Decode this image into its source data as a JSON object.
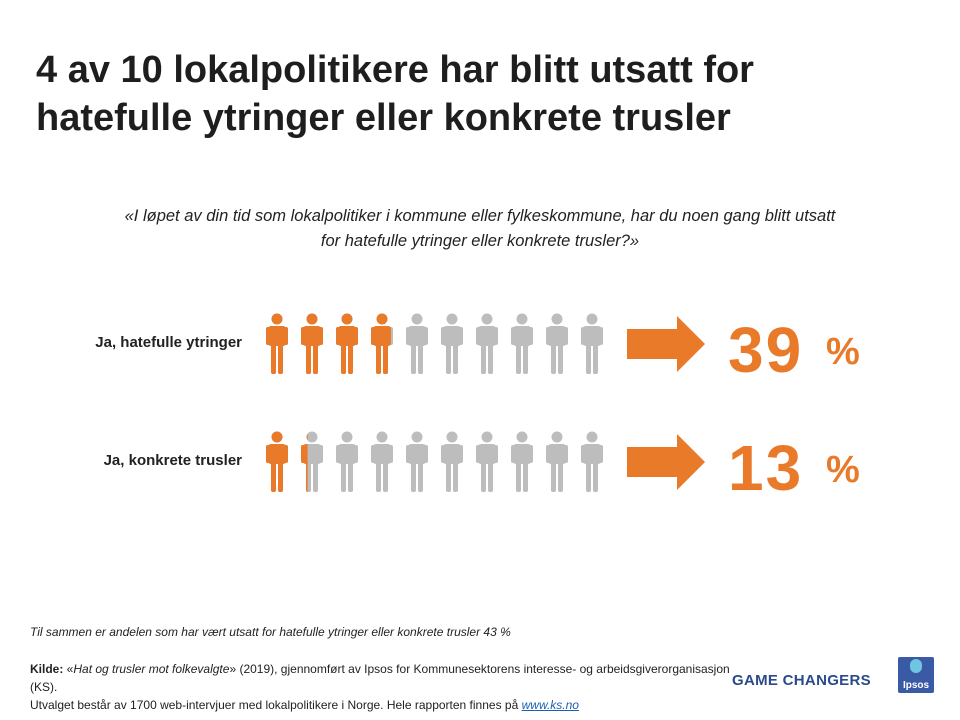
{
  "title": "4 av 10 lokalpolitikere har blitt utsatt for hatefulle ytringer eller konkrete trusler",
  "question": "«I løpet av din tid som lokalpolitiker i kommune eller fylkeskommune, har du noen gang blitt utsatt for hatefulle ytringer eller konkrete trusler?»",
  "chart_data": {
    "type": "pictogram",
    "title": "4 av 10 lokalpolitikere har blitt utsatt for hatefulle ytringer eller konkrete trusler",
    "icons_per_row": 10,
    "unit_percent_per_icon": 10,
    "categories": [
      "Ja, hatefulle ytringer",
      "Ja, konkrete trusler"
    ],
    "values": [
      39,
      13
    ],
    "display_values": [
      "39",
      "13"
    ],
    "unit_label": "%",
    "highlight_color": "#E97A2A",
    "base_color": "#BDBDBD"
  },
  "total_note": "Til sammen er andelen som har vært utsatt for hatefulle ytringer eller konkrete trusler 43  %",
  "source": {
    "label": "Kilde:",
    "prefix": " «",
    "report": "Hat og trusler mot folkevalgte",
    "text": "» (2019), gjennomført av Ipsos for Kommunesektorens interesse- og arbeidsgiverorganisasjon (KS).",
    "line2": "Utvalget består av 1700  web-intervjuer med lokalpolitikere i Norge. Hele rapporten finnes på ",
    "link": "www.ks.no"
  },
  "brand": "GAME CHANGERS",
  "logo_text": "Ipsos"
}
